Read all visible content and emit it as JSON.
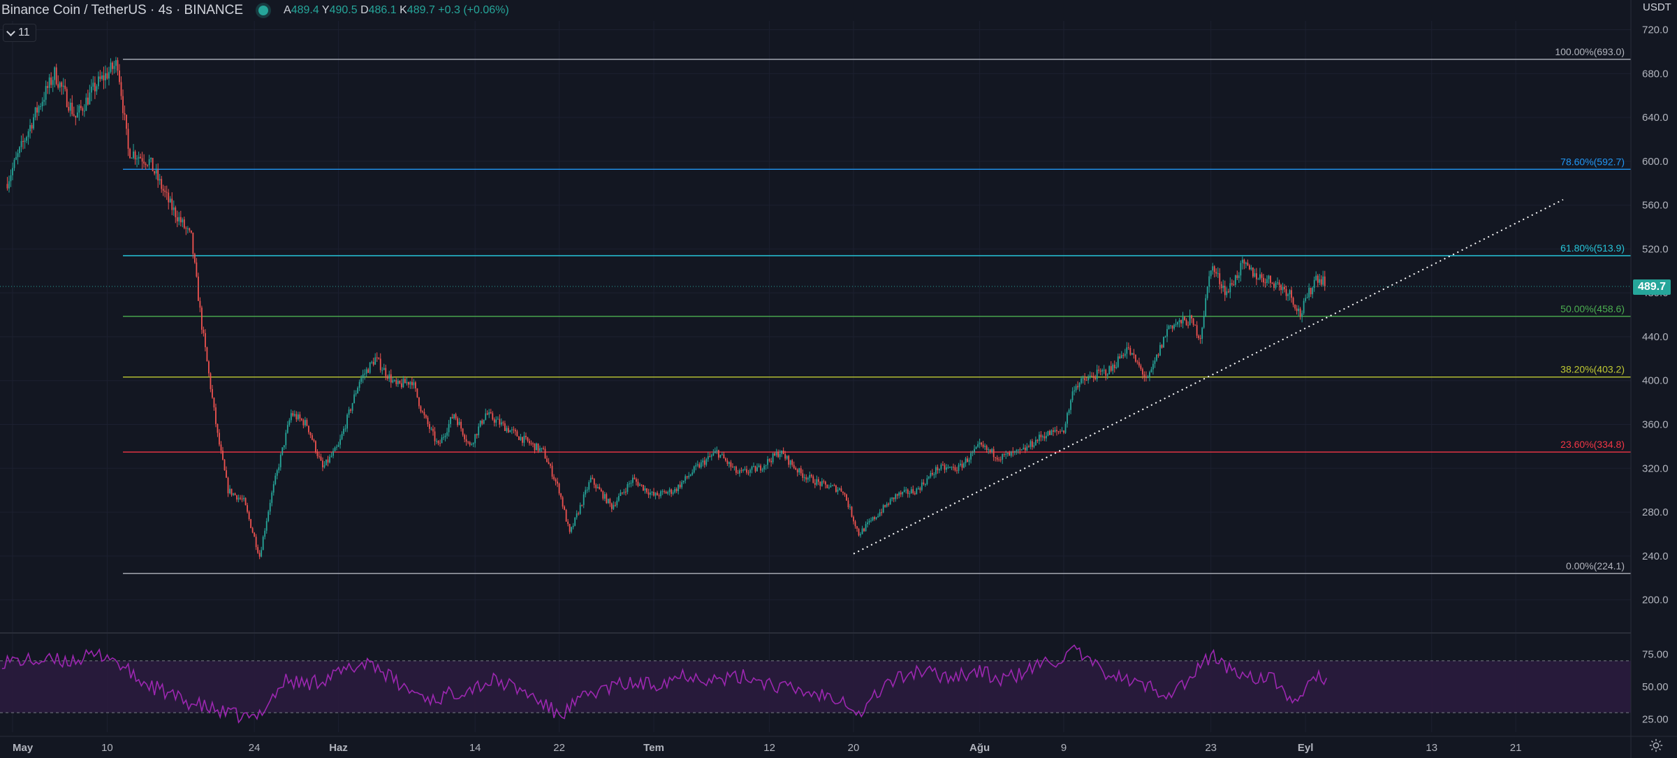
{
  "header": {
    "title": "Binance Coin / TetherUS · 4s · BINANCE",
    "ohlc": [
      {
        "key": "A",
        "value": "489.4"
      },
      {
        "key": "Y",
        "value": "490.5"
      },
      {
        "key": "D",
        "value": "486.1"
      },
      {
        "key": "K",
        "value": "489.7"
      }
    ],
    "change": "+0.3 (+0.06%)",
    "indicator_count": "11",
    "currency": "USDT"
  },
  "colors": {
    "background": "#131722",
    "up": "#26a69a",
    "down": "#ef5350",
    "rsi": "#9c27b0",
    "rsi_band": "#2a1b3d",
    "fib_100": "#b2b5be",
    "fib_786": "#2196f3",
    "fib_618": "#26c6da",
    "fib_50": "#4caf50",
    "fib_382": "#c0ca33",
    "fib_236": "#f23645",
    "fib_0": "#b2b5be"
  },
  "chart_data": {
    "type": "candlestick",
    "symbol": "Binance Coin / TetherUS",
    "interval": "4s",
    "exchange": "BINANCE",
    "last_price": "489.7",
    "y_axis": {
      "min": 180,
      "max": 728,
      "ticks": [
        "200.0",
        "240.0",
        "280.0",
        "320.0",
        "360.0",
        "400.0",
        "440.0",
        "480.0",
        "520.0",
        "560.0",
        "600.0",
        "640.0",
        "680.0",
        "720.0"
      ]
    },
    "x_axis": {
      "labels": [
        {
          "text": "May",
          "day": 0,
          "bold": true
        },
        {
          "text": "10",
          "day": 9
        },
        {
          "text": "24",
          "day": 23
        },
        {
          "text": "Haz",
          "day": 31,
          "bold": true
        },
        {
          "text": "14",
          "day": 44
        },
        {
          "text": "22",
          "day": 52
        },
        {
          "text": "Tem",
          "day": 61,
          "bold": true
        },
        {
          "text": "12",
          "day": 72
        },
        {
          "text": "20",
          "day": 80
        },
        {
          "text": "Ağu",
          "day": 92,
          "bold": true
        },
        {
          "text": "9",
          "day": 100
        },
        {
          "text": "23",
          "day": 114
        },
        {
          "text": "Eyl",
          "day": 123,
          "bold": true
        },
        {
          "text": "13",
          "day": 135
        },
        {
          "text": "21",
          "day": 143
        }
      ]
    },
    "price_path": [
      [
        -1,
        570
      ],
      [
        2,
        640
      ],
      [
        4,
        680
      ],
      [
        6,
        640
      ],
      [
        8,
        670
      ],
      [
        10,
        690
      ],
      [
        11,
        610
      ],
      [
        13,
        600
      ],
      [
        15,
        560
      ],
      [
        17,
        530
      ],
      [
        18,
        450
      ],
      [
        19.5,
        350
      ],
      [
        20.5,
        300
      ],
      [
        22,
        290
      ],
      [
        23.5,
        240
      ],
      [
        24.5,
        290
      ],
      [
        26.5,
        370
      ],
      [
        28,
        360
      ],
      [
        29.5,
        320
      ],
      [
        31,
        340
      ],
      [
        33,
        400
      ],
      [
        34.5,
        420
      ],
      [
        36.5,
        395
      ],
      [
        38,
        400
      ],
      [
        39,
        370
      ],
      [
        40.5,
        340
      ],
      [
        42,
        370
      ],
      [
        43.5,
        340
      ],
      [
        45,
        370
      ],
      [
        46.5,
        360
      ],
      [
        48,
        350
      ],
      [
        50.5,
        335
      ],
      [
        52,
        300
      ],
      [
        53,
        260
      ],
      [
        55,
        310
      ],
      [
        57,
        285
      ],
      [
        59,
        310
      ],
      [
        61,
        295
      ],
      [
        63,
        300
      ],
      [
        65,
        320
      ],
      [
        67,
        335
      ],
      [
        69,
        315
      ],
      [
        71,
        320
      ],
      [
        73,
        335
      ],
      [
        75,
        315
      ],
      [
        77,
        305
      ],
      [
        79,
        300
      ],
      [
        80.5,
        260
      ],
      [
        82,
        275
      ],
      [
        84,
        295
      ],
      [
        86,
        300
      ],
      [
        88,
        320
      ],
      [
        90,
        320
      ],
      [
        92,
        340
      ],
      [
        94,
        330
      ],
      [
        96,
        335
      ],
      [
        98,
        350
      ],
      [
        100,
        355
      ],
      [
        101,
        395
      ],
      [
        103,
        405
      ],
      [
        104.5,
        410
      ],
      [
        106,
        430
      ],
      [
        108,
        400
      ],
      [
        110,
        450
      ],
      [
        112,
        455
      ],
      [
        113,
        440
      ],
      [
        114,
        505
      ],
      [
        115.5,
        480
      ],
      [
        117,
        505
      ],
      [
        118.5,
        495
      ],
      [
        120,
        490
      ],
      [
        121.5,
        480
      ],
      [
        122.5,
        460
      ],
      [
        124,
        495
      ],
      [
        125,
        490
      ]
    ],
    "fibonacci": [
      {
        "level": "100.00%",
        "price": 693.0,
        "label": "100.00%(693.0)",
        "color_key": "fib_100"
      },
      {
        "level": "78.60%",
        "price": 592.7,
        "label": "78.60%(592.7)",
        "color_key": "fib_786"
      },
      {
        "level": "61.80%",
        "price": 513.9,
        "label": "61.80%(513.9)",
        "color_key": "fib_618"
      },
      {
        "level": "50.00%",
        "price": 458.6,
        "label": "50.00%(458.6)",
        "color_key": "fib_50"
      },
      {
        "level": "38.20%",
        "price": 403.2,
        "label": "38.20%(403.2)",
        "color_key": "fib_382"
      },
      {
        "level": "23.60%",
        "price": 334.8,
        "label": "23.60%(334.8)",
        "color_key": "fib_236"
      },
      {
        "level": "0.00%",
        "price": 224.1,
        "label": "0.00%(224.1)",
        "color_key": "fib_0"
      }
    ],
    "fib_start_day": 10.5,
    "trendline": {
      "from": {
        "day": 80,
        "price": 242
      },
      "to": {
        "day": 147.5,
        "price": 565
      },
      "style": "dotted"
    },
    "rsi": {
      "min": 15,
      "max": 85,
      "ticks": [
        "25.00",
        "50.00",
        "75.00"
      ],
      "band": [
        30,
        70
      ],
      "path": [
        [
          -1,
          70
        ],
        [
          5,
          70
        ],
        [
          9,
          75
        ],
        [
          12,
          55
        ],
        [
          16,
          40
        ],
        [
          20,
          30
        ],
        [
          23,
          25
        ],
        [
          26,
          55
        ],
        [
          28,
          52
        ],
        [
          31,
          60
        ],
        [
          34,
          70
        ],
        [
          37,
          50
        ],
        [
          40,
          40
        ],
        [
          43,
          48
        ],
        [
          46,
          55
        ],
        [
          49,
          45
        ],
        [
          52,
          28
        ],
        [
          55,
          45
        ],
        [
          58,
          52
        ],
        [
          61,
          52
        ],
        [
          64,
          60
        ],
        [
          67,
          55
        ],
        [
          70,
          58
        ],
        [
          73,
          50
        ],
        [
          76,
          45
        ],
        [
          79,
          42
        ],
        [
          80.5,
          28
        ],
        [
          83,
          52
        ],
        [
          86,
          62
        ],
        [
          89,
          58
        ],
        [
          92,
          62
        ],
        [
          94,
          55
        ],
        [
          96,
          60
        ],
        [
          98,
          68
        ],
        [
          100,
          72
        ],
        [
          101,
          78
        ],
        [
          103,
          65
        ],
        [
          106,
          55
        ],
        [
          108,
          50
        ],
        [
          110,
          45
        ],
        [
          112,
          55
        ],
        [
          114,
          75
        ],
        [
          116,
          62
        ],
        [
          118,
          58
        ],
        [
          120,
          55
        ],
        [
          121,
          45
        ],
        [
          122.5,
          38
        ],
        [
          124,
          60
        ],
        [
          125,
          55
        ]
      ]
    }
  }
}
